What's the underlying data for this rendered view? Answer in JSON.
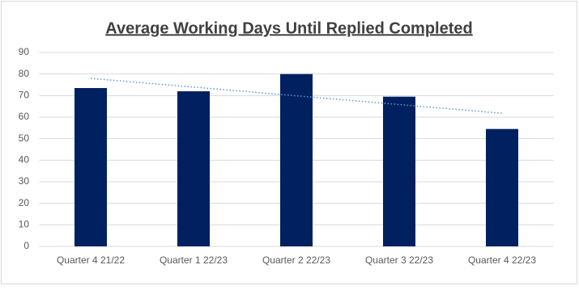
{
  "chart_data": {
    "type": "bar",
    "title": "Average Working Days Until Replied Completed",
    "categories": [
      "Quarter 4 21/22",
      "Quarter 1 22/23",
      "Quarter 2 22/23",
      "Quarter 3 22/23",
      "Quarter 4 22/23"
    ],
    "values": [
      73.5,
      72,
      80,
      69.5,
      54.5
    ],
    "color": "#002060",
    "ylim": [
      0,
      90
    ],
    "yticks": [
      0,
      10,
      20,
      30,
      40,
      50,
      60,
      70,
      80,
      90
    ],
    "grid": true,
    "trendline": {
      "type": "linear",
      "color": "#5b9bd5"
    }
  }
}
